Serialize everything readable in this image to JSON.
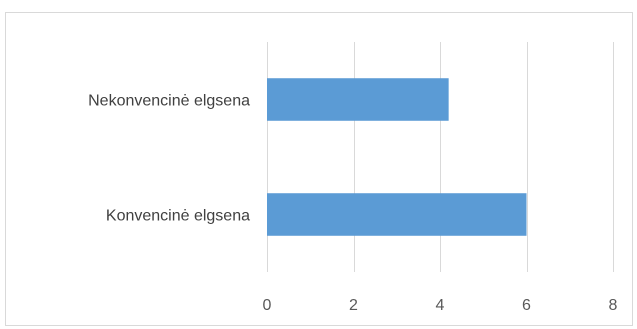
{
  "chart_data": {
    "type": "bar",
    "orientation": "horizontal",
    "categories": [
      "Nekonvencinė elgsena",
      "Konvencinė elgsena"
    ],
    "values": [
      4.2,
      6
    ],
    "title": "",
    "xlabel": "",
    "ylabel": "",
    "xlim": [
      0,
      8
    ],
    "x_ticks": [
      "0",
      "2",
      "4",
      "6",
      "8"
    ],
    "grid": true,
    "legend": "none",
    "colors": {
      "bar": "#5b9bd5",
      "grid": "#d9d9d9",
      "frame": "#d9d9d9"
    }
  }
}
